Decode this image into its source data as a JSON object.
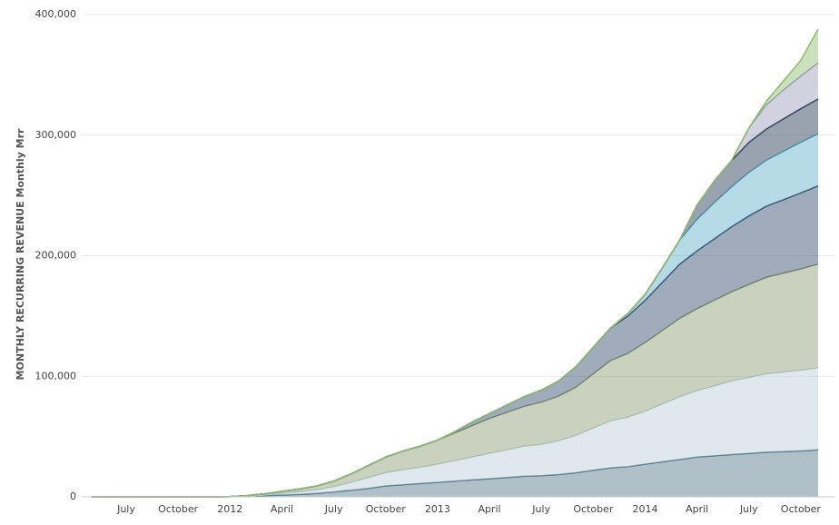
{
  "chart_data": {
    "type": "stacked-area",
    "y_label": "MONTHLY RECURRING REVENUE Monthly Mrr",
    "categories": [
      null,
      null,
      "July",
      null,
      null,
      "October",
      null,
      null,
      "2012",
      null,
      null,
      "April",
      null,
      null,
      "July",
      null,
      null,
      "October",
      null,
      null,
      "2013",
      null,
      null,
      "April",
      null,
      null,
      "July",
      null,
      null,
      "October",
      null,
      null,
      "2014",
      null,
      null,
      "April",
      null,
      null,
      "July",
      null,
      null,
      "October",
      null
    ],
    "ylim": [
      0,
      400000
    ],
    "yticks": [
      0,
      {
        "value": 100000,
        "label": "100,000"
      },
      {
        "value": 200000,
        "label": "200,000"
      },
      {
        "value": 300000,
        "label": "300,000"
      },
      {
        "value": 400000,
        "label": "400,000"
      }
    ],
    "grid": true,
    "series": [
      {
        "color": "#4f7486",
        "values": [
          0,
          0,
          0,
          0,
          0,
          0,
          0,
          0,
          100,
          400,
          900,
          1500,
          2000,
          2800,
          4000,
          5500,
          7000,
          9000,
          10000,
          11000,
          12000,
          13000,
          14000,
          15000,
          16000,
          17000,
          17500,
          18500,
          20000,
          22000,
          24000,
          25000,
          27000,
          29000,
          31000,
          33000,
          34000,
          35000,
          36000,
          37000,
          37500,
          38000,
          39000
        ]
      },
      {
        "color": "#b9cfd6",
        "values": [
          0,
          0,
          0,
          0,
          0,
          0,
          0,
          0,
          100,
          300,
          800,
          1500,
          2200,
          3000,
          4500,
          6500,
          9000,
          11000,
          12500,
          13500,
          15000,
          17000,
          19000,
          21000,
          23000,
          25000,
          26000,
          28000,
          31000,
          35000,
          39000,
          41000,
          44000,
          48000,
          52000,
          55000,
          58000,
          61000,
          63000,
          65000,
          66000,
          67000,
          68000
        ]
      },
      {
        "color": "#8a9a70",
        "values": [
          0,
          0,
          0,
          0,
          0,
          0,
          0,
          0,
          0,
          300,
          800,
          1500,
          2300,
          3200,
          4500,
          7000,
          10000,
          13000,
          15500,
          17500,
          20000,
          23000,
          26000,
          29000,
          31000,
          33000,
          35000,
          37000,
          40000,
          45000,
          50000,
          53000,
          57000,
          61000,
          65000,
          68000,
          71000,
          74000,
          77000,
          80000,
          82000,
          84000,
          86000
        ]
      },
      {
        "color": "#2c4868",
        "values": [
          0,
          0,
          0,
          0,
          0,
          0,
          0,
          0,
          0,
          0,
          0,
          0,
          0,
          0,
          0,
          0,
          0,
          0,
          0,
          0,
          0,
          1000,
          3000,
          4000,
          6000,
          8000,
          10000,
          12500,
          17000,
          22000,
          27000,
          31000,
          35000,
          40000,
          45000,
          48000,
          51000,
          54000,
          57000,
          59000,
          61000,
          63000,
          65000
        ]
      },
      {
        "color": "#5fb0c8",
        "values": [
          0,
          0,
          0,
          0,
          0,
          0,
          0,
          0,
          0,
          0,
          0,
          0,
          0,
          0,
          0,
          0,
          0,
          0,
          0,
          0,
          0,
          0,
          0,
          0,
          0,
          0,
          0,
          0,
          0,
          0,
          0,
          2000,
          5000,
          12000,
          20000,
          26000,
          30000,
          33000,
          36000,
          38000,
          40000,
          42000,
          43000
        ]
      },
      {
        "color": "#1c3350",
        "values": [
          0,
          0,
          0,
          0,
          0,
          0,
          0,
          0,
          0,
          0,
          0,
          0,
          0,
          0,
          0,
          0,
          0,
          0,
          0,
          0,
          0,
          0,
          0,
          0,
          0,
          0,
          0,
          0,
          0,
          0,
          0,
          0,
          0,
          0,
          0,
          12000,
          18000,
          22000,
          25000,
          26000,
          27000,
          28000,
          29000
        ]
      },
      {
        "color": "#9a9ab8",
        "values": [
          0,
          0,
          0,
          0,
          0,
          0,
          0,
          0,
          0,
          0,
          0,
          0,
          0,
          0,
          0,
          0,
          0,
          0,
          0,
          0,
          0,
          0,
          0,
          0,
          0,
          0,
          0,
          0,
          0,
          0,
          0,
          0,
          0,
          0,
          0,
          0,
          0,
          0,
          12000,
          20000,
          24000,
          27000,
          30000
        ]
      },
      {
        "color": "#8cbc6c",
        "values": [
          0,
          0,
          0,
          0,
          0,
          0,
          0,
          0,
          0,
          0,
          0,
          0,
          0,
          0,
          0,
          0,
          0,
          0,
          0,
          0,
          0,
          0,
          0,
          0,
          0,
          0,
          0,
          0,
          0,
          0,
          0,
          0,
          0,
          0,
          0,
          0,
          0,
          0,
          0,
          3000,
          7500,
          13000,
          28000
        ]
      }
    ]
  }
}
